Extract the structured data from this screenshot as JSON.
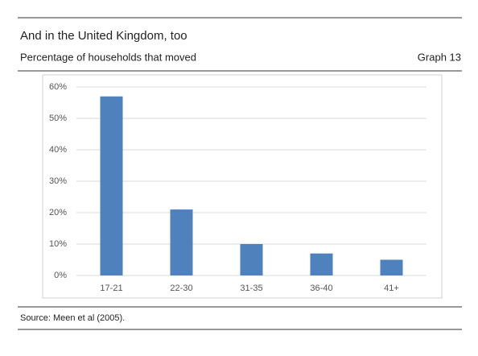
{
  "chart_data": {
    "type": "bar",
    "title": "And in the United Kingdom, too",
    "subtitle": "Percentage of households that moved",
    "graph_label": "Graph 13",
    "source": "Source: Meen et al (2005).",
    "categories": [
      "17-21",
      "22-30",
      "31-35",
      "36-40",
      "41+"
    ],
    "values": [
      57,
      21,
      10,
      7,
      5
    ],
    "color": "#4f81bd",
    "ylim": [
      0,
      60
    ],
    "yticks": [
      {
        "value": 0,
        "label": "0%"
      },
      {
        "value": 10,
        "label": "10%"
      },
      {
        "value": 20,
        "label": "20%"
      },
      {
        "value": 30,
        "label": "30%"
      },
      {
        "value": 40,
        "label": "40%"
      },
      {
        "value": 50,
        "label": "50%"
      },
      {
        "value": 60,
        "label": "60%"
      }
    ],
    "grid": true
  }
}
